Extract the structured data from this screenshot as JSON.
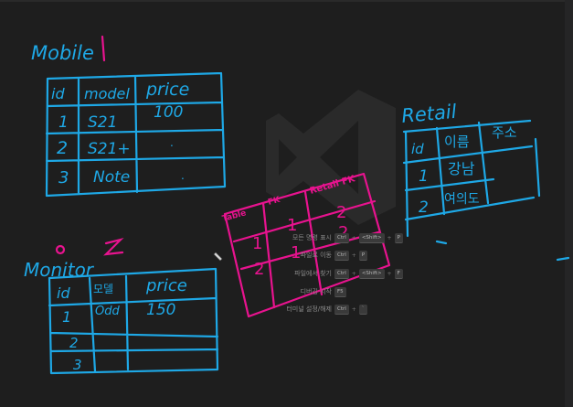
{
  "colors": {
    "background": "#1e1e1e",
    "logo": "#2b2b2b",
    "ink_blue": "#1ea8e6",
    "ink_magenta": "#e8138f"
  },
  "welcome_hints": [
    {
      "label": "모든 명령 표시",
      "keys": [
        "Ctrl",
        "<Shift>",
        "P"
      ]
    },
    {
      "label": "파일로 이동",
      "keys": [
        "Ctrl",
        "P"
      ]
    },
    {
      "label": "파일에서 찾기",
      "keys": [
        "Ctrl",
        "<Shift>",
        "F"
      ]
    },
    {
      "label": "디버깅 시작",
      "keys": [
        "F5"
      ]
    },
    {
      "label": "터미널 설정/해제",
      "keys": [
        "Ctrl",
        "`"
      ]
    }
  ],
  "sketch": {
    "mobile": {
      "title": "Mobile",
      "number": "1",
      "headers": [
        "id",
        "model",
        "price"
      ],
      "rows": [
        [
          "1",
          "S21",
          "100"
        ],
        [
          "2",
          "S21+",
          "."
        ],
        [
          "3",
          "Note",
          "."
        ]
      ]
    },
    "monitor": {
      "title": "Monitor",
      "number": "2",
      "headers": [
        "id",
        "모델",
        "price"
      ],
      "rows": [
        [
          "1",
          "Odd",
          "150"
        ],
        [
          "2",
          "",
          ""
        ],
        [
          "3",
          "",
          ""
        ]
      ]
    },
    "retail": {
      "title": "Retail",
      "headers": [
        "id",
        "이름",
        "주소"
      ],
      "rows": [
        [
          "1",
          "강남"
        ],
        [
          "2",
          "여의도"
        ]
      ]
    },
    "junction": {
      "headers": [
        "Table",
        "FK",
        "Retail FK"
      ],
      "rows": [
        [
          "1",
          "1",
          "2"
        ],
        [
          "2",
          "1",
          "2"
        ],
        [
          "",
          "",
          ""
        ]
      ]
    }
  }
}
